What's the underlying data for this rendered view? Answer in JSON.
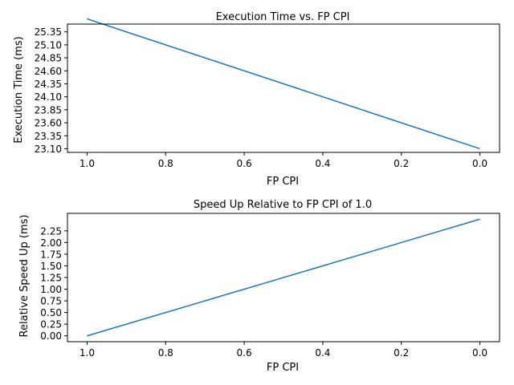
{
  "chart_data": [
    {
      "type": "line",
      "title": "Execution Time vs. FP CPI",
      "xlabel": "FP CPI",
      "ylabel": "Execution Time (ms)",
      "xlim": [
        1.05,
        -0.05
      ],
      "ylim": [
        23.03,
        25.5
      ],
      "x_ticks": [
        "1.0",
        "0.8",
        "0.6",
        "0.4",
        "0.2",
        "0.0"
      ],
      "y_ticks": [
        "23.10",
        "23.35",
        "23.60",
        "23.85",
        "24.10",
        "24.35",
        "24.60",
        "24.85",
        "25.10",
        "25.35"
      ],
      "grid": false,
      "series": [
        {
          "x": [
            1.0,
            0.0
          ],
          "y": [
            25.6,
            23.1
          ],
          "color": "#1f77b4"
        }
      ]
    },
    {
      "type": "line",
      "title": "Speed Up Relative to FP CPI of 1.0",
      "xlabel": "FP CPI",
      "ylabel": "Relative Speed Up (ms)",
      "xlim": [
        1.05,
        -0.05
      ],
      "ylim": [
        -0.125,
        2.625
      ],
      "x_ticks": [
        "1.0",
        "0.8",
        "0.6",
        "0.4",
        "0.2",
        "0.0"
      ],
      "y_ticks": [
        "0.00",
        "0.25",
        "0.50",
        "0.75",
        "1.00",
        "1.25",
        "1.50",
        "1.75",
        "2.00",
        "2.25"
      ],
      "grid": false,
      "series": [
        {
          "x": [
            1.0,
            0.0
          ],
          "y": [
            0.0,
            2.5
          ],
          "color": "#1f77b4"
        }
      ]
    }
  ]
}
